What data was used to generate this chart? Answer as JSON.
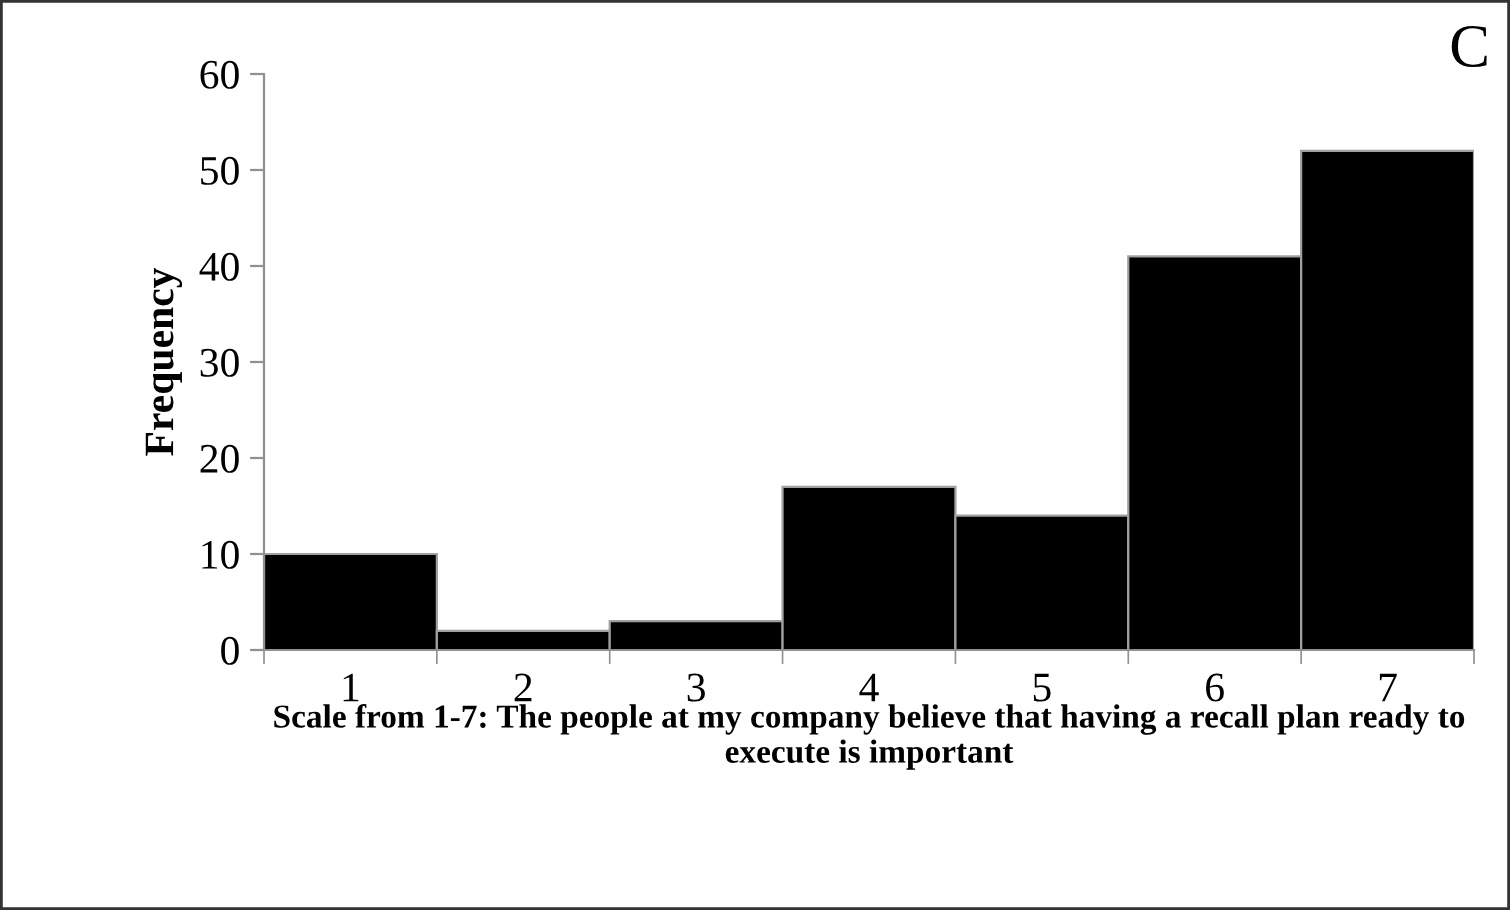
{
  "chart_data": {
    "type": "bar",
    "xlabel": "Scale from 1-7: The people at my company believe that having a recall plan ready to execute is important",
    "ylabel": "Frequency",
    "annotations": [
      "C"
    ],
    "categories": [
      "1",
      "2",
      "3",
      "4",
      "5",
      "6",
      "7"
    ],
    "values": [
      10,
      2,
      3,
      17,
      14,
      41,
      52
    ],
    "color": "#000000",
    "ylim": [
      0,
      60
    ],
    "yticks": [
      0,
      10,
      20,
      30,
      40,
      50,
      60
    ],
    "grid": false,
    "legend": false
  }
}
